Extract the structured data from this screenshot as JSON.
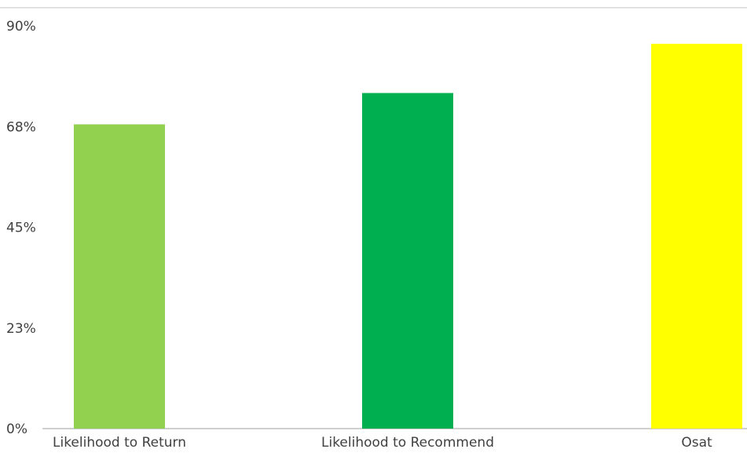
{
  "chart_data": {
    "type": "bar",
    "categories": [
      "Likelihood to Return",
      "Likelihood to Recommend",
      "Osat"
    ],
    "values": [
      68,
      75,
      86
    ],
    "value_unit": "%",
    "colors": [
      "#92d050",
      "#00b050",
      "#ffff00"
    ],
    "ylim": [
      0,
      90
    ],
    "yticks": [
      {
        "value": 0,
        "label": "0%"
      },
      {
        "value": 22.5,
        "label": "23%"
      },
      {
        "value": 45,
        "label": "45%"
      },
      {
        "value": 67.5,
        "label": "68%"
      },
      {
        "value": 90,
        "label": "90%"
      }
    ],
    "title": "",
    "xlabel": "",
    "ylabel": "",
    "grid": false,
    "legend": "none"
  }
}
